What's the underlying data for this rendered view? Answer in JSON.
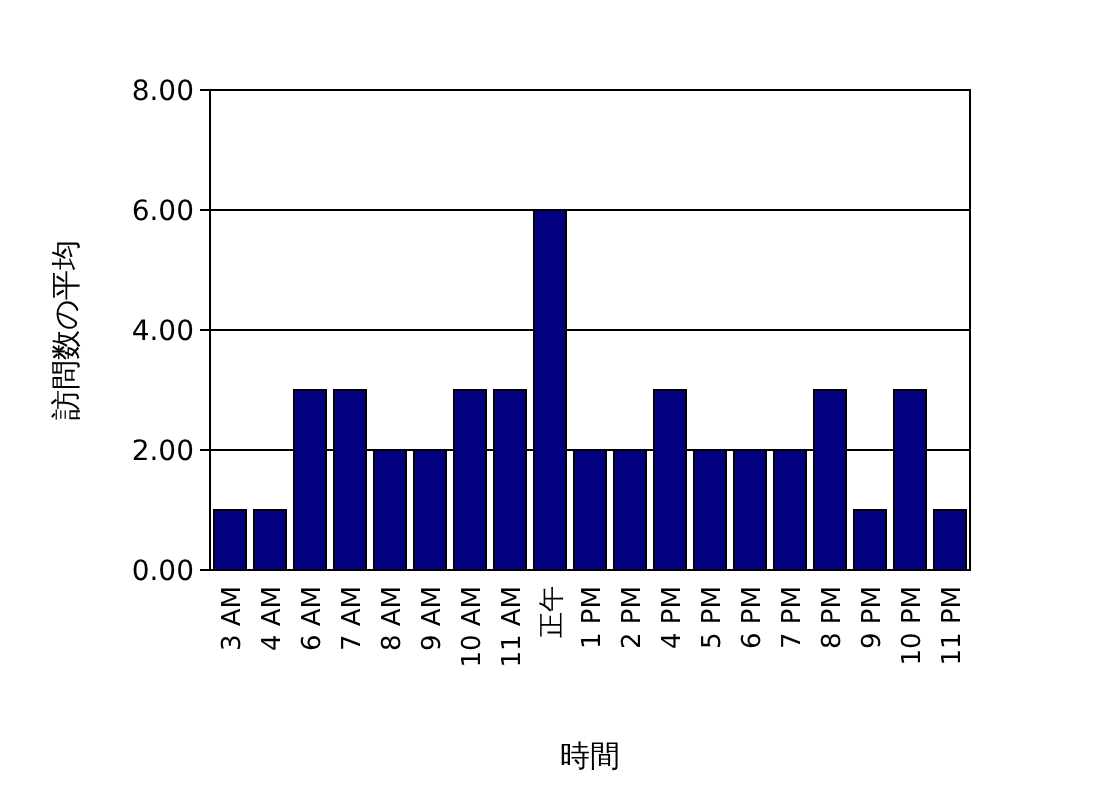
{
  "chart_data": {
    "type": "bar",
    "xlabel": "時間",
    "ylabel": "訪問数の平均",
    "categories": [
      "3 AM",
      "4 AM",
      "6 AM",
      "7 AM",
      "8 AM",
      "9 AM",
      "10 AM",
      "11 AM",
      "正午",
      "1 PM",
      "2 PM",
      "4 PM",
      "5 PM",
      "6 PM",
      "7 PM",
      "8 PM",
      "9 PM",
      "10 PM",
      "11 PM"
    ],
    "values": [
      1,
      1,
      3,
      3,
      2,
      2,
      3,
      3,
      6,
      2,
      2,
      3,
      2,
      2,
      2,
      3,
      1,
      3,
      1
    ],
    "color": "#000080",
    "ylim": [
      0,
      8
    ],
    "yticks": [
      {
        "value": 0,
        "label": "0.00"
      },
      {
        "value": 2,
        "label": "2.00"
      },
      {
        "value": 4,
        "label": "4.00"
      },
      {
        "value": 6,
        "label": "6.00"
      },
      {
        "value": 8,
        "label": "8.00"
      }
    ],
    "grid": "y"
  }
}
